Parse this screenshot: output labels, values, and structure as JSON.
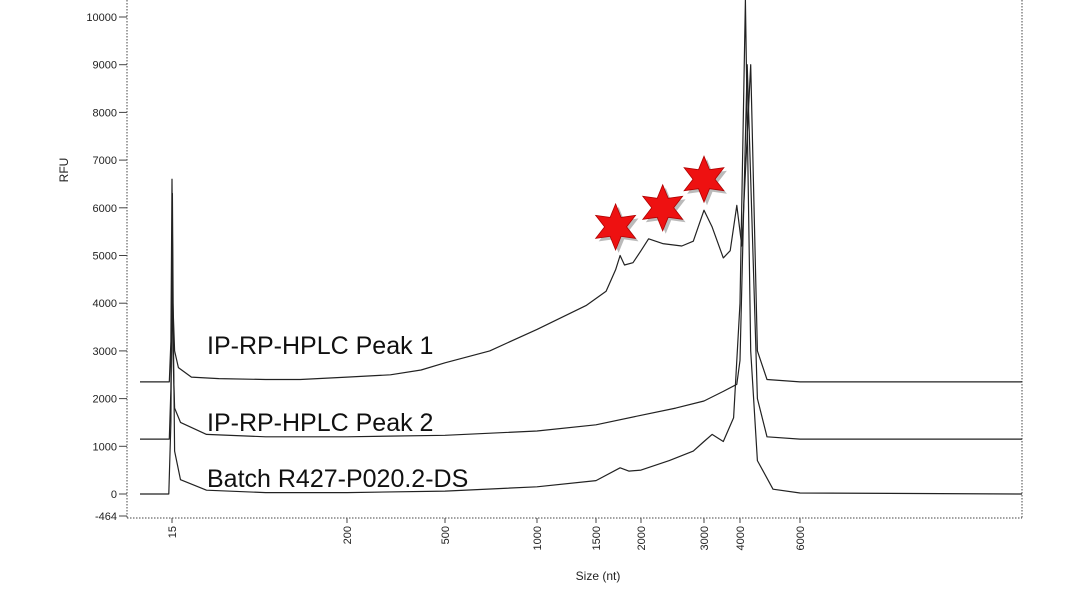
{
  "chart_data": {
    "type": "line",
    "xlabel": "Size (nt)",
    "ylabel": "RFU",
    "x_scale": "log",
    "x_ticks": [
      "15",
      "200",
      "500",
      "1000",
      "1500",
      "2000",
      "3000",
      "4000",
      "6000"
    ],
    "y_ticks": [
      "-464",
      "0",
      "1000",
      "2000",
      "3000",
      "4000",
      "5000",
      "6000",
      "7000",
      "8000",
      "9000",
      "10000"
    ],
    "ylim": [
      -464,
      10400
    ],
    "grid": false,
    "series": [
      {
        "name": "IP-RP-HPLC  Peak 1",
        "points": [
          [
            10,
            2350
          ],
          [
            14.5,
            2350
          ],
          [
            14.8,
            3200
          ],
          [
            15,
            6600
          ],
          [
            15.2,
            4000
          ],
          [
            15.6,
            3000
          ],
          [
            16.5,
            2650
          ],
          [
            20,
            2450
          ],
          [
            30,
            2420
          ],
          [
            60,
            2400
          ],
          [
            100,
            2400
          ],
          [
            200,
            2450
          ],
          [
            300,
            2500
          ],
          [
            400,
            2600
          ],
          [
            500,
            2750
          ],
          [
            700,
            3000
          ],
          [
            1000,
            3450
          ],
          [
            1400,
            3950
          ],
          [
            1600,
            4250
          ],
          [
            1700,
            4700
          ],
          [
            1750,
            5000
          ],
          [
            1800,
            4800
          ],
          [
            1900,
            4850
          ],
          [
            2000,
            5100
          ],
          [
            2100,
            5350
          ],
          [
            2300,
            5250
          ],
          [
            2600,
            5200
          ],
          [
            2800,
            5300
          ],
          [
            3000,
            5950
          ],
          [
            3200,
            5600
          ],
          [
            3500,
            4950
          ],
          [
            3700,
            5100
          ],
          [
            3900,
            6050
          ],
          [
            4050,
            5200
          ],
          [
            4300,
            9000
          ],
          [
            4500,
            3000
          ],
          [
            4800,
            2400
          ],
          [
            6000,
            2350
          ],
          [
            20000,
            2350
          ]
        ],
        "color": "#222222"
      },
      {
        "name": "IP-RP-HPLC  Peak 2",
        "points": [
          [
            10,
            1150
          ],
          [
            14.5,
            1150
          ],
          [
            14.8,
            2200
          ],
          [
            15,
            4600
          ],
          [
            15.2,
            3000
          ],
          [
            15.6,
            1800
          ],
          [
            17,
            1500
          ],
          [
            25,
            1250
          ],
          [
            60,
            1200
          ],
          [
            200,
            1200
          ],
          [
            500,
            1230
          ],
          [
            1000,
            1320
          ],
          [
            1500,
            1450
          ],
          [
            2000,
            1650
          ],
          [
            2500,
            1800
          ],
          [
            3000,
            1950
          ],
          [
            3500,
            2150
          ],
          [
            3900,
            2300
          ],
          [
            4000,
            2800
          ],
          [
            4200,
            9000
          ],
          [
            4500,
            2000
          ],
          [
            4800,
            1200
          ],
          [
            6000,
            1150
          ],
          [
            20000,
            1150
          ]
        ],
        "color": "#222222"
      },
      {
        "name": "Batch R427-P020.2-DS",
        "points": [
          [
            10,
            0
          ],
          [
            14.4,
            0
          ],
          [
            14.8,
            1500
          ],
          [
            15.1,
            6300
          ],
          [
            15.3,
            3500
          ],
          [
            15.6,
            900
          ],
          [
            17,
            300
          ],
          [
            25,
            80
          ],
          [
            60,
            30
          ],
          [
            200,
            30
          ],
          [
            500,
            60
          ],
          [
            1000,
            150
          ],
          [
            1500,
            280
          ],
          [
            1750,
            550
          ],
          [
            1850,
            480
          ],
          [
            2000,
            500
          ],
          [
            2400,
            700
          ],
          [
            2800,
            900
          ],
          [
            3000,
            1100
          ],
          [
            3200,
            1250
          ],
          [
            3500,
            1100
          ],
          [
            3800,
            1600
          ],
          [
            4000,
            4000
          ],
          [
            4150,
            10400
          ],
          [
            4300,
            3000
          ],
          [
            4500,
            700
          ],
          [
            5000,
            100
          ],
          [
            6000,
            20
          ],
          [
            20000,
            0
          ]
        ],
        "color": "#222222"
      }
    ],
    "annotations": [
      {
        "type": "star",
        "x": 1700,
        "y": 5600,
        "color": "#ee1111"
      },
      {
        "type": "star",
        "x": 2300,
        "y": 6000,
        "color": "#ee1111"
      },
      {
        "type": "star",
        "x": 3000,
        "y": 6600,
        "color": "#ee1111"
      }
    ]
  }
}
